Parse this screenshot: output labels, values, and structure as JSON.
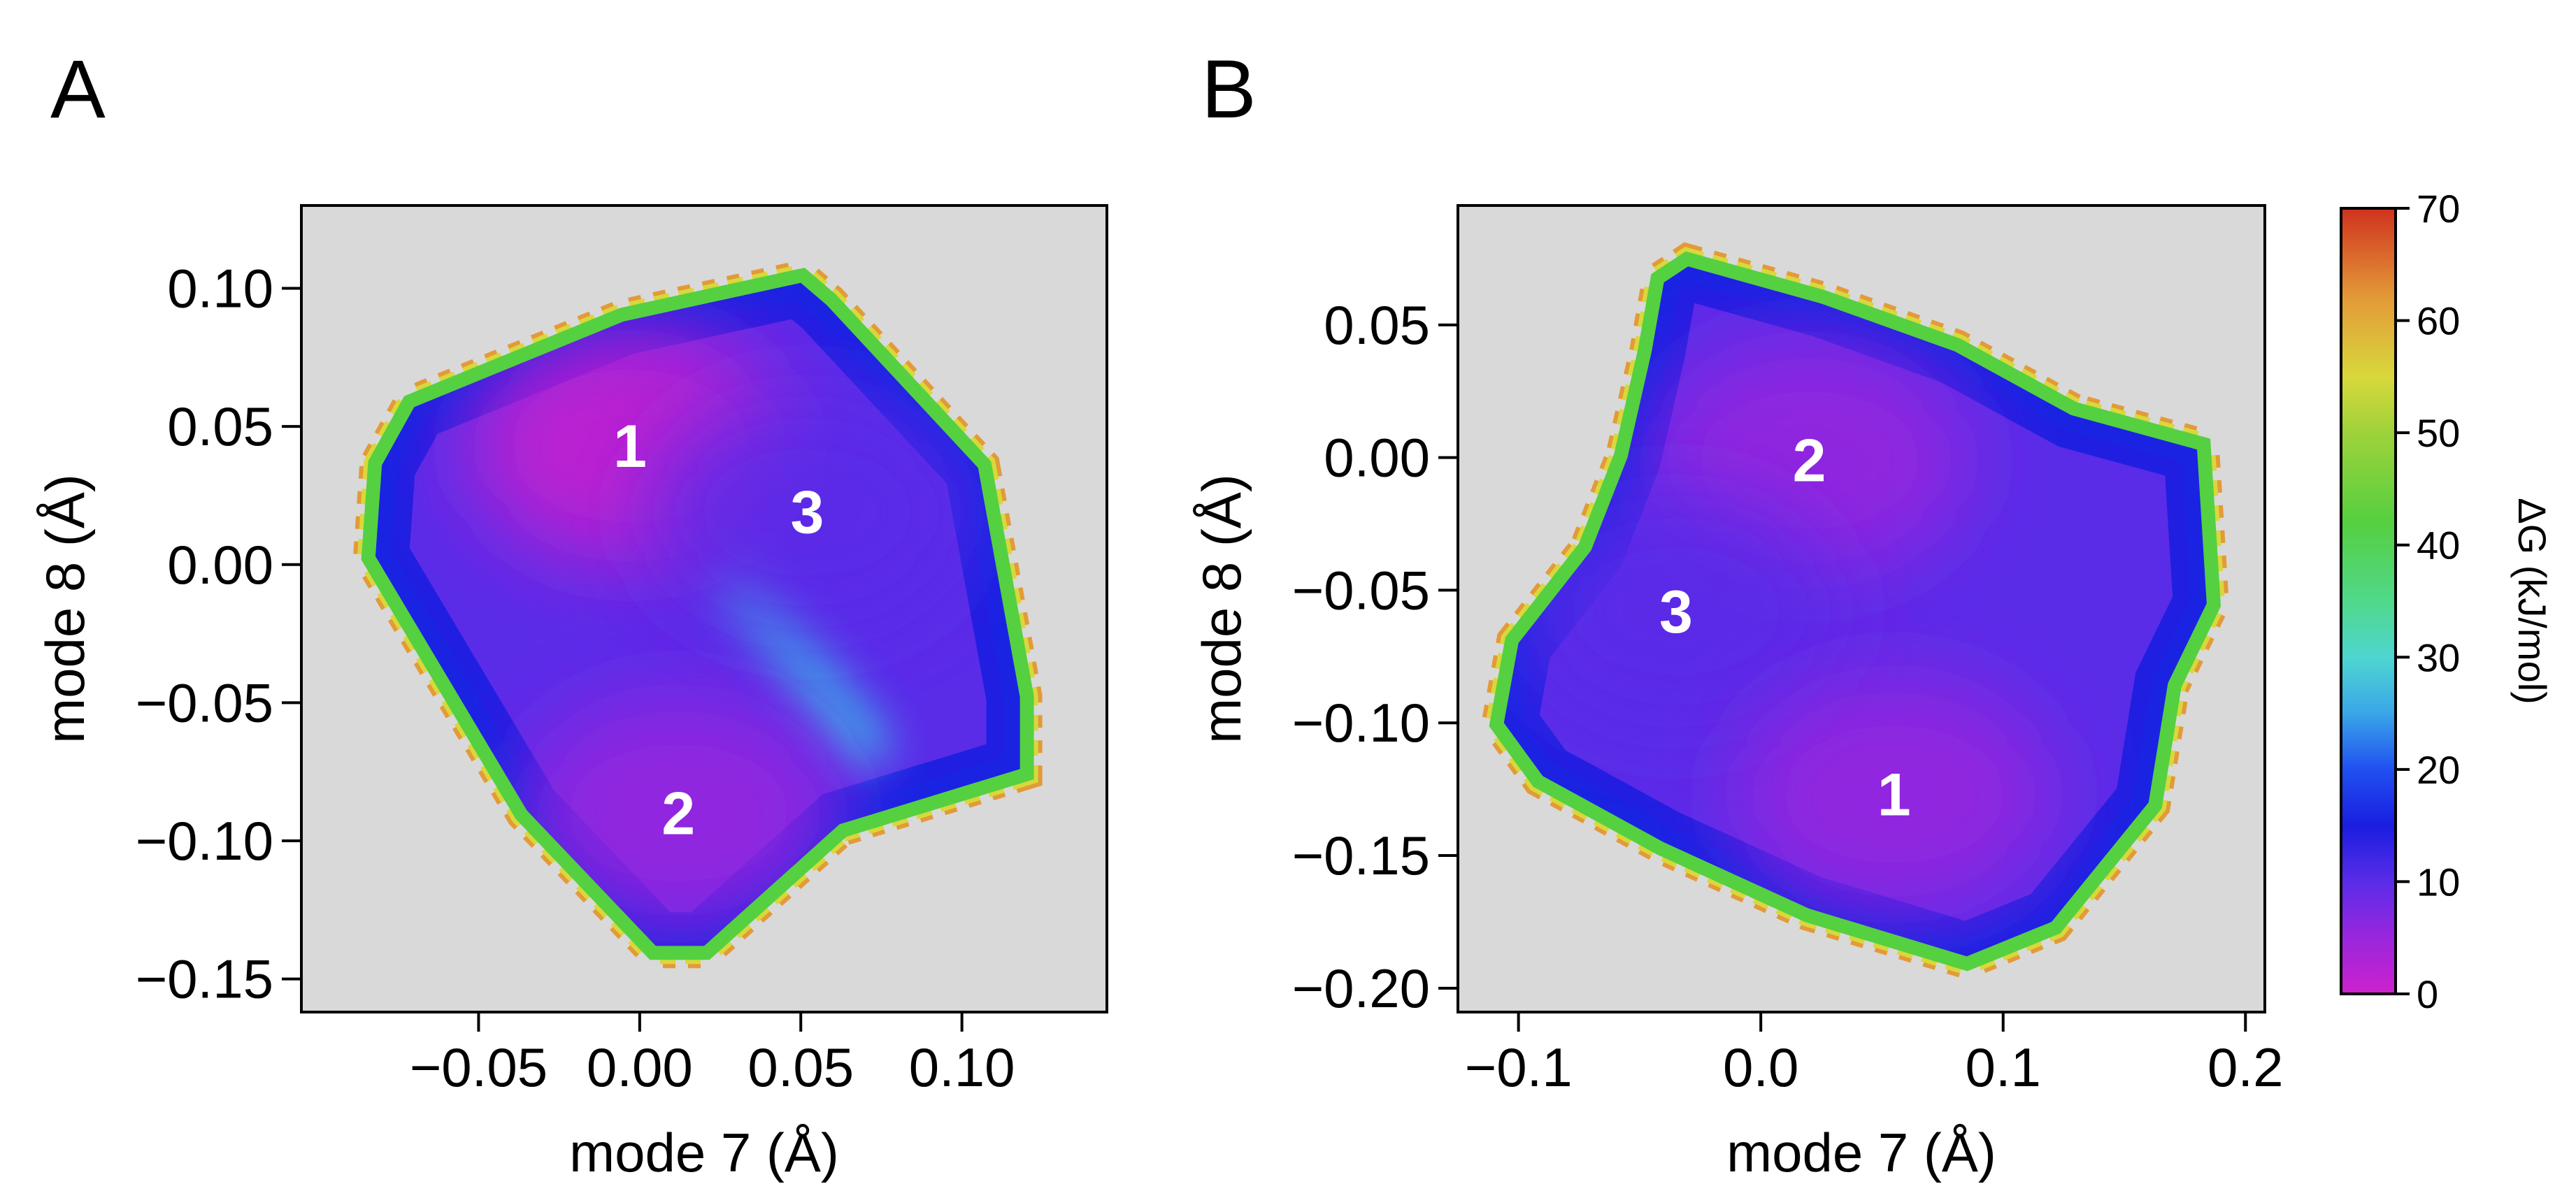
{
  "chart_data": [
    {
      "panel": "A",
      "type": "heatmap",
      "xlabel": "mode 7 (Å)",
      "ylabel": "mode 8 (Å)",
      "xlim": [
        -0.105,
        0.145
      ],
      "ylim": [
        -0.162,
        0.13
      ],
      "xticks": [
        -0.05,
        0.0,
        0.05,
        0.1
      ],
      "xtick_labels": [
        "−0.05",
        "0.00",
        "0.05",
        "0.10"
      ],
      "yticks": [
        0.1,
        0.05,
        0.0,
        -0.05,
        -0.1,
        -0.15
      ],
      "ytick_labels": [
        "0.10",
        "0.05",
        "0.00",
        "−0.05",
        "−0.10",
        "−0.15"
      ],
      "boundary": [
        [
          -0.08,
          0.036
        ],
        [
          -0.07,
          0.057
        ],
        [
          -0.005,
          0.088
        ],
        [
          0.05,
          0.102
        ],
        [
          0.058,
          0.094
        ],
        [
          0.105,
          0.035
        ],
        [
          0.118,
          -0.048
        ],
        [
          0.118,
          -0.074
        ],
        [
          0.062,
          -0.094
        ],
        [
          0.02,
          -0.138
        ],
        [
          0.005,
          -0.138
        ],
        [
          -0.035,
          -0.089
        ],
        [
          -0.082,
          0.003
        ]
      ],
      "basins": [
        {
          "label": "1",
          "x": -0.003,
          "y": 0.043,
          "dG": 2
        },
        {
          "label": "2",
          "x": 0.012,
          "y": -0.09,
          "dG": 4
        },
        {
          "label": "3",
          "x": 0.052,
          "y": 0.019,
          "dG": 10
        }
      ],
      "ridges": [
        {
          "from": [
            0.032,
            -0.008
          ],
          "to": [
            0.07,
            -0.065
          ],
          "dG": 25
        }
      ]
    },
    {
      "panel": "B",
      "type": "heatmap",
      "xlabel": "mode 7 (Å)",
      "ylabel": "mode 8 (Å)",
      "xlim": [
        -0.125,
        0.208
      ],
      "ylim": [
        -0.209,
        0.095
      ],
      "xticks": [
        -0.1,
        0.0,
        0.1,
        0.2
      ],
      "xtick_labels": [
        "−0.1",
        "0.0",
        "0.1",
        "0.2"
      ],
      "yticks": [
        0.05,
        0.0,
        -0.05,
        -0.1,
        -0.15,
        -0.2
      ],
      "ytick_labels": [
        "0.05",
        "0.00",
        "−0.05",
        "−0.10",
        "−0.15",
        "−0.20"
      ],
      "boundary": [
        [
          -0.04,
          0.066
        ],
        [
          -0.03,
          0.072
        ],
        [
          0.025,
          0.058
        ],
        [
          0.08,
          0.04
        ],
        [
          0.128,
          0.016
        ],
        [
          0.18,
          0.003
        ],
        [
          0.184,
          -0.055
        ],
        [
          0.168,
          -0.085
        ],
        [
          0.16,
          -0.13
        ],
        [
          0.12,
          -0.175
        ],
        [
          0.085,
          -0.188
        ],
        [
          0.02,
          -0.17
        ],
        [
          -0.04,
          -0.145
        ],
        [
          -0.09,
          -0.12
        ],
        [
          -0.106,
          -0.1
        ],
        [
          -0.1,
          -0.07
        ],
        [
          -0.07,
          -0.035
        ],
        [
          -0.055,
          0.0
        ],
        [
          -0.045,
          0.04
        ]
      ],
      "basins": [
        {
          "label": "2",
          "x": 0.02,
          "y": -0.001,
          "dG": 6
        },
        {
          "label": "3",
          "x": -0.035,
          "y": -0.058,
          "dG": 9
        },
        {
          "label": "1",
          "x": 0.055,
          "y": -0.127,
          "dG": 3
        }
      ],
      "ridges": []
    }
  ],
  "colorbar": {
    "title": "ΔG (kJ/mol)",
    "ticks": [
      70,
      60,
      50,
      40,
      30,
      20,
      10,
      0
    ],
    "tick_labels": [
      "70",
      "60",
      "50",
      "40",
      "30",
      "20",
      "10",
      "0"
    ],
    "range": [
      0,
      70
    ],
    "stops": [
      {
        "value": 0,
        "color": "#cc22cc"
      },
      {
        "value": 5,
        "color": "#9a26dd"
      },
      {
        "value": 10,
        "color": "#5a2ce8"
      },
      {
        "value": 15,
        "color": "#1a1ee0"
      },
      {
        "value": 20,
        "color": "#2050f0"
      },
      {
        "value": 25,
        "color": "#3aa6e8"
      },
      {
        "value": 30,
        "color": "#4ed6d0"
      },
      {
        "value": 35,
        "color": "#50d88a"
      },
      {
        "value": 42,
        "color": "#55d040"
      },
      {
        "value": 50,
        "color": "#9ed23a"
      },
      {
        "value": 55,
        "color": "#d8d83c"
      },
      {
        "value": 62,
        "color": "#e39a38"
      },
      {
        "value": 70,
        "color": "#d0321e"
      }
    ]
  },
  "colors": {
    "background": "#d9d9d9",
    "label_text": "#ffffff"
  }
}
